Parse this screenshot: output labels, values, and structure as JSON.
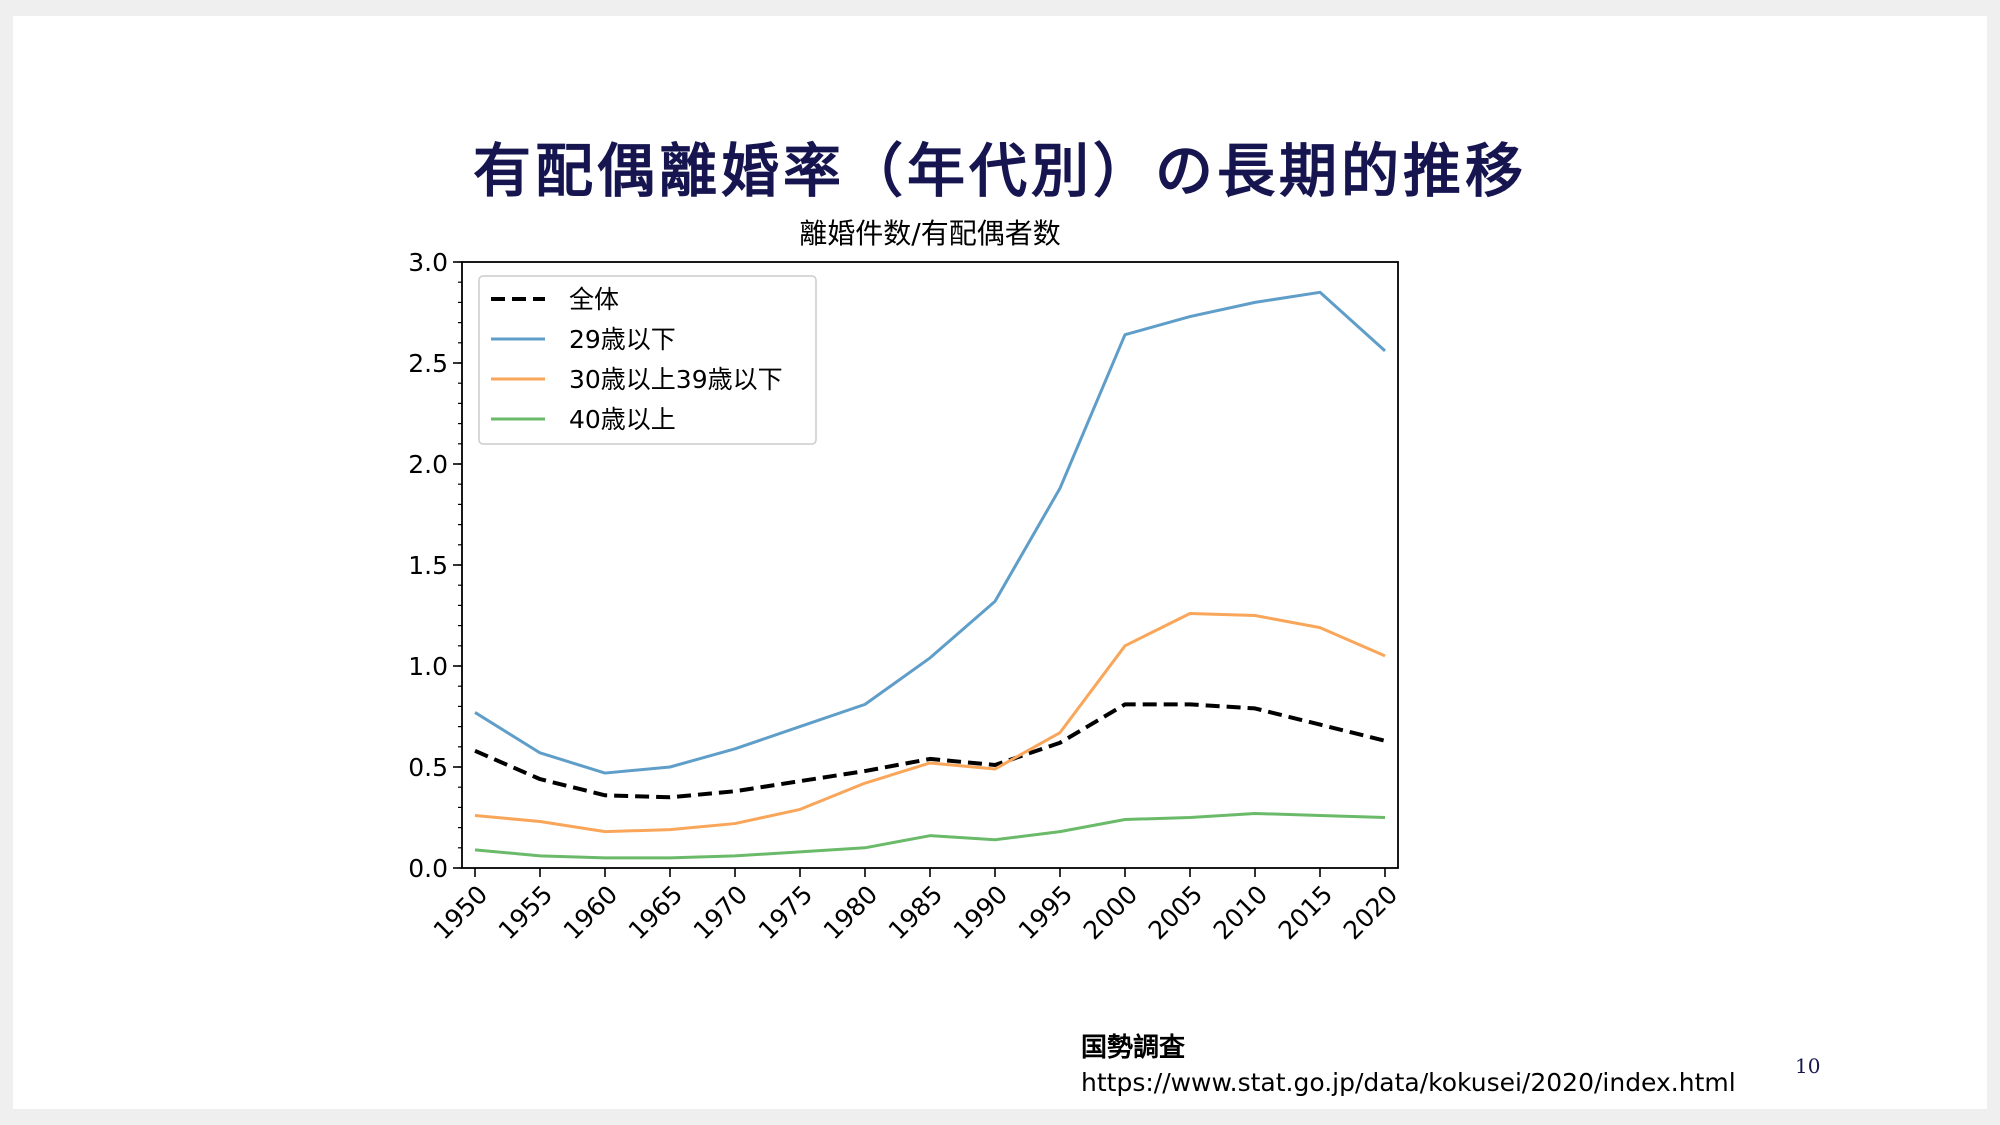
{
  "slide": {
    "title": "有配偶離婚率（年代別）の長期的推移",
    "source_name": "国勢調査",
    "source_url": "https://www.stat.go.jp/data/kokusei/2020/index.html",
    "page_number": "10"
  },
  "chart_data": {
    "type": "line",
    "title": "離婚件数/有配偶者数",
    "xlabel": "",
    "ylabel": "",
    "x": [
      1950,
      1955,
      1960,
      1965,
      1970,
      1975,
      1980,
      1985,
      1990,
      1995,
      2000,
      2005,
      2010,
      2015,
      2020
    ],
    "xlim": [
      1949,
      2021
    ],
    "ylim": [
      0.0,
      3.0
    ],
    "yticks": [
      0.0,
      0.5,
      1.0,
      1.5,
      2.0,
      2.5,
      3.0
    ],
    "ytick_labels": [
      "0.0",
      "0.5",
      "1.0",
      "1.5",
      "2.0",
      "2.5",
      "3.0"
    ],
    "grid": false,
    "legend_position": "top-left",
    "series": [
      {
        "name": "全体",
        "color": "#000000",
        "dash": true,
        "values": [
          0.58,
          0.44,
          0.36,
          0.35,
          0.38,
          0.43,
          0.48,
          0.54,
          0.51,
          0.62,
          0.81,
          0.81,
          0.79,
          0.71,
          0.63
        ]
      },
      {
        "name": "29歳以下",
        "color": "#5f9ec9",
        "dash": false,
        "values": [
          0.77,
          0.57,
          0.47,
          0.5,
          0.59,
          0.7,
          0.81,
          1.04,
          1.32,
          1.88,
          2.64,
          2.73,
          2.8,
          2.85,
          2.56
        ]
      },
      {
        "name": "30歳以上39歳以下",
        "color": "#f9a65a",
        "dash": false,
        "values": [
          0.26,
          0.23,
          0.18,
          0.19,
          0.22,
          0.29,
          0.42,
          0.52,
          0.49,
          0.67,
          1.1,
          1.26,
          1.25,
          1.19,
          1.05
        ]
      },
      {
        "name": "40歳以上",
        "color": "#6aba6a",
        "dash": false,
        "values": [
          0.09,
          0.06,
          0.05,
          0.05,
          0.06,
          0.08,
          0.1,
          0.16,
          0.14,
          0.18,
          0.24,
          0.25,
          0.27,
          0.26,
          0.25
        ]
      }
    ]
  }
}
